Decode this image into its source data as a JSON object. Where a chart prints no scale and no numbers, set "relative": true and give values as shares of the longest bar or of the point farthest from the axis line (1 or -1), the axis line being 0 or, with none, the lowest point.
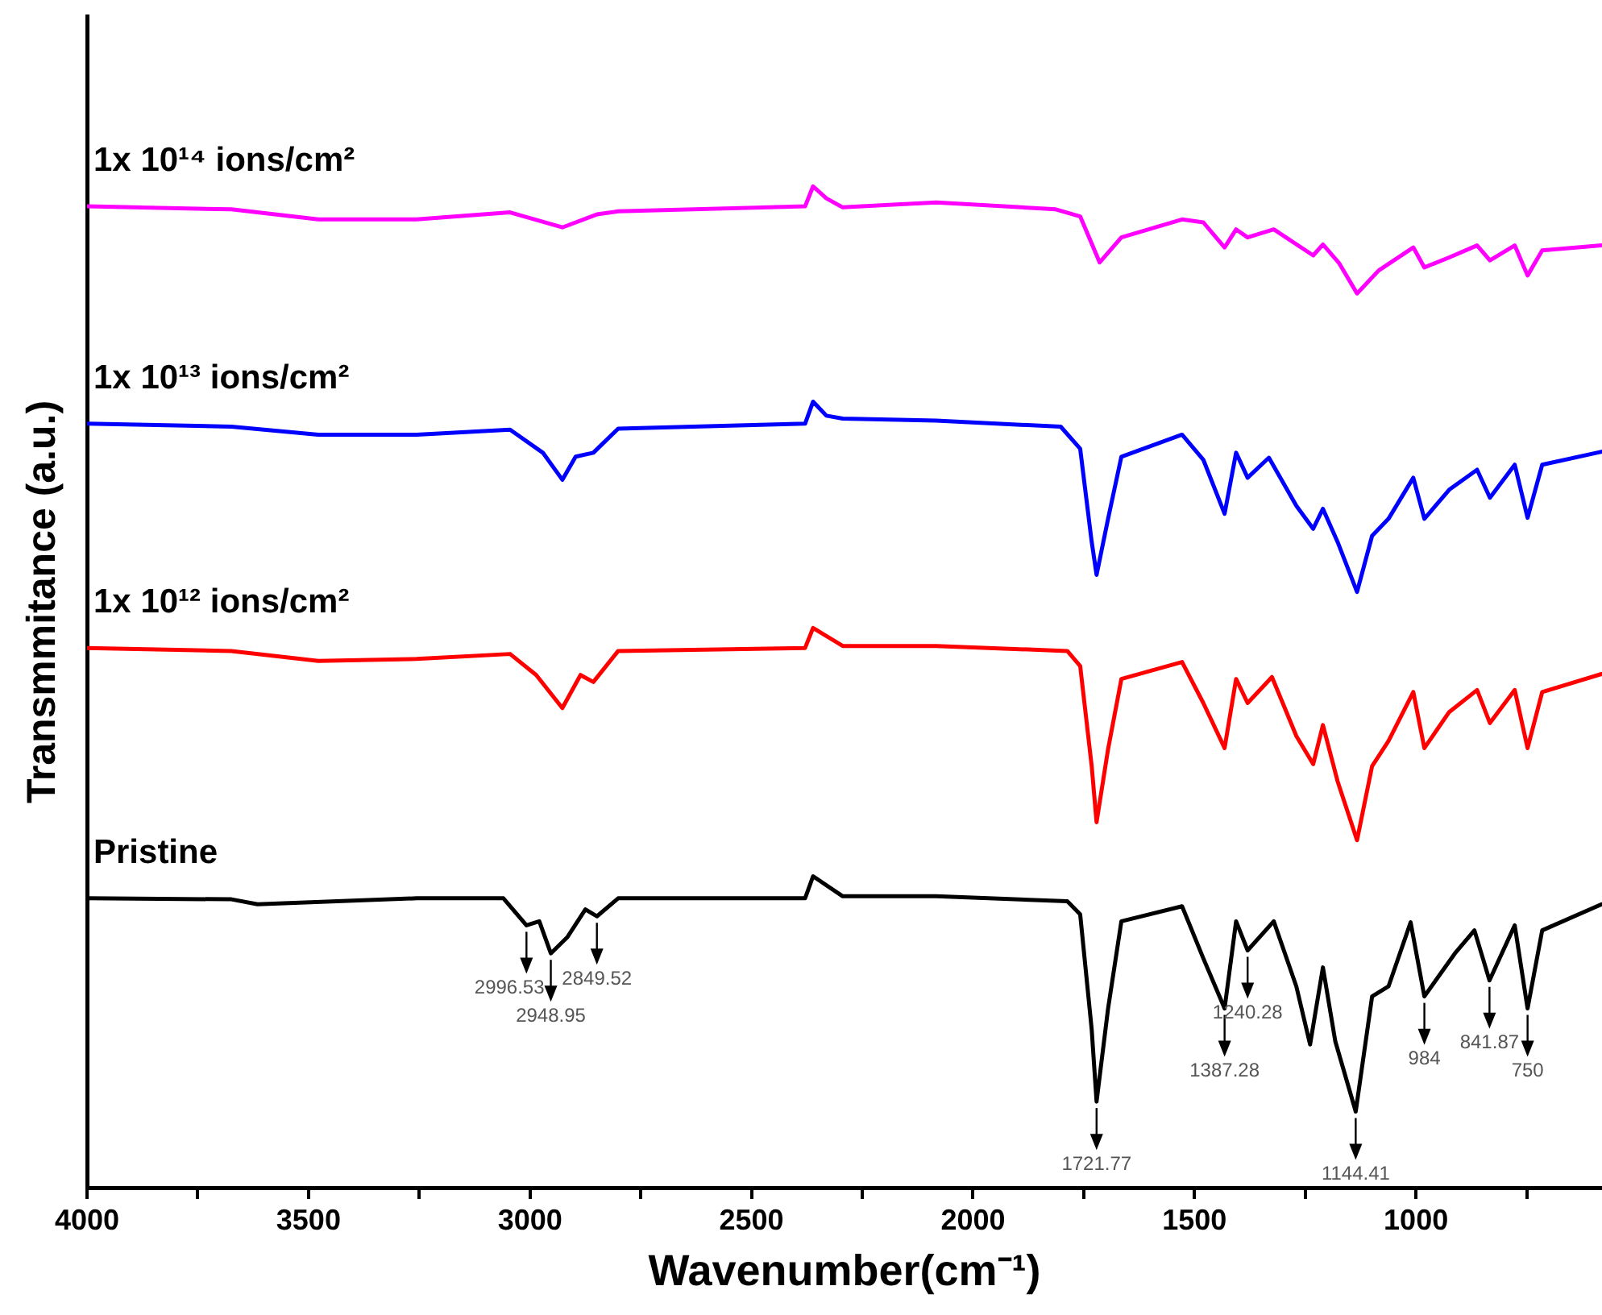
{
  "chart_data": {
    "type": "line",
    "relative": true,
    "xlabel": "Wavenumber(cm⁻¹)",
    "ylabel": "Transmmitance (a.u.)",
    "xlim": [
      4000,
      580
    ],
    "xticks": [
      4000,
      {
        "value": 3750,
        "label": null
      },
      3500,
      {
        "value": 3250,
        "label": null
      },
      3000,
      {
        "value": 2750,
        "label": null
      },
      2500,
      {
        "value": 2250,
        "label": null
      },
      2000,
      {
        "value": 1750,
        "label": null
      },
      1500,
      {
        "value": 1250,
        "label": null
      },
      1000,
      {
        "value": 750,
        "label": null
      }
    ],
    "legend": false,
    "grid": false,
    "marker": "none",
    "line_style": "solid",
    "series": [
      {
        "name": "1x 10¹⁴ ions/cm²",
        "color": "#ff00ff",
        "x": [
          4000,
          3674,
          3478,
          3256,
          3045,
          2927,
          2849,
          2801,
          2379,
          2361,
          2331,
          2294,
          2083,
          1813,
          1758,
          1714,
          1665,
          1528,
          1480,
          1432,
          1406,
          1380,
          1321,
          1232,
          1210,
          1173,
          1133,
          1084,
          1006,
          981,
          925,
          862,
          833,
          777,
          748,
          715,
          581
        ],
        "values": [
          0.98,
          0.977,
          0.967,
          0.967,
          0.974,
          0.959,
          0.972,
          0.975,
          0.98,
          1.0,
          0.988,
          0.979,
          0.984,
          0.977,
          0.97,
          0.924,
          0.949,
          0.967,
          0.964,
          0.939,
          0.957,
          0.949,
          0.957,
          0.931,
          0.942,
          0.923,
          0.893,
          0.916,
          0.939,
          0.919,
          0.929,
          0.941,
          0.926,
          0.941,
          0.911,
          0.936,
          0.941
        ]
      },
      {
        "name": "1x 10¹³ ions/cm²",
        "color": "#0000ff",
        "x": [
          4000,
          3674,
          3478,
          3256,
          3045,
          2971,
          2927,
          2897,
          2857,
          2801,
          2379,
          2361,
          2331,
          2294,
          2083,
          1802,
          1758,
          1732,
          1721,
          1695,
          1665,
          1528,
          1480,
          1432,
          1406,
          1380,
          1332,
          1270,
          1232,
          1210,
          1177,
          1133,
          1099,
          1062,
          1006,
          981,
          925,
          862,
          833,
          777,
          748,
          715,
          581
        ],
        "values": [
          0.763,
          0.76,
          0.752,
          0.752,
          0.757,
          0.734,
          0.707,
          0.73,
          0.734,
          0.758,
          0.763,
          0.785,
          0.771,
          0.768,
          0.766,
          0.76,
          0.738,
          0.645,
          0.612,
          0.668,
          0.73,
          0.752,
          0.727,
          0.673,
          0.734,
          0.709,
          0.729,
          0.681,
          0.658,
          0.678,
          0.645,
          0.595,
          0.651,
          0.668,
          0.709,
          0.668,
          0.697,
          0.717,
          0.689,
          0.722,
          0.669,
          0.722,
          0.735
        ]
      },
      {
        "name": "1x 10¹² ions/cm²",
        "color": "#ff0000",
        "x": [
          4000,
          3674,
          3478,
          3256,
          3045,
          2986,
          2927,
          2886,
          2857,
          2801,
          2379,
          2361,
          2294,
          2083,
          1787,
          1758,
          1732,
          1721,
          1695,
          1665,
          1528,
          1480,
          1432,
          1406,
          1380,
          1325,
          1270,
          1232,
          1210,
          1177,
          1133,
          1099,
          1062,
          1006,
          981,
          925,
          862,
          833,
          777,
          748,
          715,
          581
        ],
        "values": [
          0.539,
          0.536,
          0.526,
          0.528,
          0.533,
          0.512,
          0.479,
          0.512,
          0.505,
          0.536,
          0.539,
          0.559,
          0.541,
          0.541,
          0.536,
          0.521,
          0.421,
          0.365,
          0.438,
          0.508,
          0.525,
          0.484,
          0.439,
          0.508,
          0.484,
          0.51,
          0.451,
          0.423,
          0.462,
          0.406,
          0.347,
          0.421,
          0.446,
          0.495,
          0.439,
          0.475,
          0.497,
          0.464,
          0.497,
          0.439,
          0.495,
          0.513
        ]
      },
      {
        "name": "Pristine",
        "color": "#000000",
        "x": [
          4000,
          3674,
          3615,
          3256,
          3060,
          3008,
          2979,
          2953,
          2916,
          2875,
          2849,
          2801,
          2379,
          2361,
          2294,
          2083,
          1787,
          1758,
          1732,
          1721,
          1695,
          1665,
          1528,
          1480,
          1432,
          1406,
          1380,
          1321,
          1270,
          1239,
          1210,
          1182,
          1136,
          1099,
          1062,
          1012,
          981,
          912,
          868,
          834,
          777,
          748,
          715,
          581
        ],
        "values": [
          0.289,
          0.288,
          0.283,
          0.289,
          0.289,
          0.262,
          0.266,
          0.234,
          0.25,
          0.278,
          0.271,
          0.289,
          0.289,
          0.311,
          0.291,
          0.291,
          0.286,
          0.273,
          0.158,
          0.086,
          0.179,
          0.266,
          0.281,
          0.229,
          0.179,
          0.266,
          0.237,
          0.266,
          0.201,
          0.143,
          0.22,
          0.146,
          0.076,
          0.191,
          0.201,
          0.265,
          0.191,
          0.234,
          0.257,
          0.207,
          0.262,
          0.179,
          0.257,
          0.283
        ]
      }
    ],
    "annotations": [
      {
        "text": "2996.53",
        "x": 3008,
        "y": 0.262
      },
      {
        "text": "2948.95",
        "x": 2953,
        "y": 0.234
      },
      {
        "text": "2849.52",
        "x": 2849,
        "y": 0.271
      },
      {
        "text": "1721.77",
        "x": 1721,
        "y": 0.086
      },
      {
        "text": "1387.28",
        "x": 1432,
        "y": 0.179
      },
      {
        "text": "1240.28",
        "x": 1380,
        "y": 0.237
      },
      {
        "text": "1144.41",
        "x": 1136,
        "y": 0.076
      },
      {
        "text": "984",
        "x": 981,
        "y": 0.191
      },
      {
        "text": "841.87",
        "x": 834,
        "y": 0.207
      },
      {
        "text": "750",
        "x": 748,
        "y": 0.179
      }
    ]
  }
}
